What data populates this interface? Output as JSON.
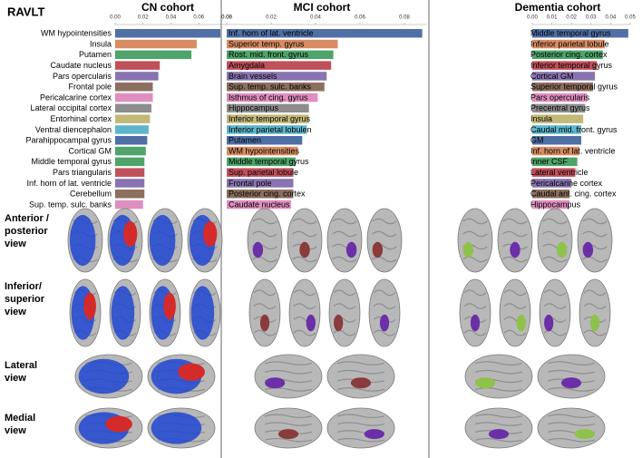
{
  "label": "RAVLT",
  "row_labels": [
    [
      "Anterior /",
      "posterior",
      "view"
    ],
    [
      "Inferior/",
      "superior",
      "view"
    ],
    [
      "Lateral",
      "view"
    ],
    [
      "Medial",
      "view"
    ]
  ],
  "chart_data": [
    {
      "type": "barh",
      "title": "CN cohort",
      "categories": [
        "WM hypointensities",
        "Insula",
        "Putamen",
        "Caudate nucleus",
        "Pars opercularis",
        "Frontal pole",
        "Pericalcarine cortex",
        "Lateral occipital cortex",
        "Entorhinal cortex",
        "Ventral diencephalon",
        "Parahippocampal gyrus",
        "Cortical GM",
        "Middle temporal gyrus",
        "Pars triangularis",
        "Inf. horn of lat. ventricle",
        "Cerebellum",
        "Sup. temp. sulc. banks"
      ],
      "values": [
        0.0755,
        0.0585,
        0.0547,
        0.032,
        0.031,
        0.027,
        0.027,
        0.026,
        0.025,
        0.024,
        0.023,
        0.022,
        0.021,
        0.021,
        0.021,
        0.021,
        0.02
      ],
      "colors": [
        "#4f6fa6",
        "#d88c62",
        "#4ea46a",
        "#c0505a",
        "#8874b0",
        "#8c6f5e",
        "#e08ec0",
        "#8d8d8d",
        "#c3b978",
        "#5db5cb",
        "#4f6fa6",
        "#4ea46a",
        "#4ea46a",
        "#c0505a",
        "#8874b0",
        "#8c6f5e",
        "#e08ec0"
      ],
      "xlim": [
        0,
        0.08
      ],
      "xticks": [
        {
          "value": 0,
          "label": "0.00"
        },
        0.02,
        0.04,
        0.06,
        0.08
      ]
    },
    {
      "type": "barh",
      "title": "MCI cohort",
      "categories": [
        "Inf. horn of lat. ventricle",
        "Superior temp. gyrus",
        "Rost. mid. front. gyrus",
        "Amygdala",
        "Brain vessels",
        "Sup. temp. sulc. banks",
        "Isthmus of cing. gyrus",
        "Hippocampus",
        "Inferior temporal gyrus",
        "Inferior parietal lobulen",
        "Putamen",
        "WM hypointensities",
        "Middle temporal gyrus",
        "Sup. parietal lobule",
        "Frontal pole",
        "Posterior cing. cortex",
        "Caudate nucleus"
      ],
      "values": [
        0.088,
        0.05,
        0.048,
        0.047,
        0.045,
        0.044,
        0.041,
        0.037,
        0.037,
        0.036,
        0.034,
        0.032,
        0.031,
        0.03,
        0.03,
        0.03,
        0.029
      ],
      "colors": [
        "#4f6fa6",
        "#d88c62",
        "#4ea46a",
        "#c0505a",
        "#8874b0",
        "#8c6f5e",
        "#e08ec0",
        "#8d8d8d",
        "#c3b978",
        "#5db5cb",
        "#4f6fa6",
        "#d88c62",
        "#4ea46a",
        "#c0505a",
        "#8874b0",
        "#8c6f5e",
        "#e08ec0"
      ],
      "xlim": [
        0,
        0.09
      ],
      "xticks": [
        {
          "value": 0,
          "label": "0.00"
        },
        0.02,
        0.04,
        0.06,
        0.08
      ]
    },
    {
      "type": "barh",
      "title": "Dementia cohort",
      "categories": [
        "Middle temporal gyrus",
        "Inferior parietal lobule",
        "Posterior cing. cortex",
        "Inferior temporal gyrus",
        "Cortical GM",
        "Superior temporal gyrus",
        "Pars opercularis",
        "Precentral gyrus",
        "Insula",
        "Caudal mid. front. gyrus",
        "GM",
        "Inf. horn of lat. ventricle",
        "Inner CSF",
        "Lateral ventricle",
        "Pericalcarine cortex",
        "Caudal ant. cing. cortex",
        "Hippocampus"
      ],
      "values": [
        0.049,
        0.037,
        0.036,
        0.033,
        0.032,
        0.031,
        0.028,
        0.027,
        0.026,
        0.025,
        0.025,
        0.024,
        0.023,
        0.022,
        0.02,
        0.019,
        0.019
      ],
      "colors": [
        "#4f6fa6",
        "#d88c62",
        "#4ea46a",
        "#c0505a",
        "#8874b0",
        "#8c6f5e",
        "#e08ec0",
        "#8d8d8d",
        "#c3b978",
        "#5db5cb",
        "#4f6fa6",
        "#d88c62",
        "#4ea46a",
        "#c0505a",
        "#8874b0",
        "#8c6f5e",
        "#e08ec0"
      ],
      "xlim": [
        0,
        0.05
      ],
      "xticks": [
        {
          "value": 0,
          "label": "0.00"
        },
        0.01,
        0.02,
        0.03,
        0.04,
        0.05
      ]
    }
  ]
}
